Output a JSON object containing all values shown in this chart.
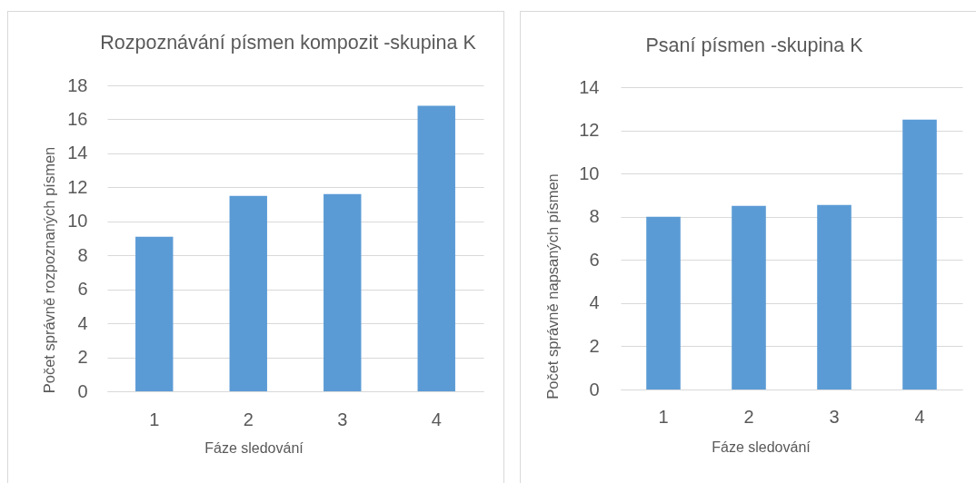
{
  "chart_data": [
    {
      "type": "bar",
      "title": "Rozpoznávání písmen kompozit -skupina K",
      "xlabel": "Fáze sledování",
      "ylabel": "Počet správně rozpoznaných písmen",
      "categories": [
        "1",
        "2",
        "3",
        "4"
      ],
      "values": [
        9.1,
        11.5,
        11.6,
        16.8
      ],
      "color": "#5b9bd5",
      "ylim": [
        0,
        18
      ],
      "yticks": [
        0,
        2,
        4,
        6,
        8,
        10,
        12,
        14,
        16,
        18
      ],
      "grid": "y"
    },
    {
      "type": "bar",
      "title": "Psaní písmen -skupina K",
      "xlabel": "Fáze sledování",
      "ylabel": "Počet správně napsaných písmen",
      "categories": [
        "1",
        "2",
        "3",
        "4"
      ],
      "values": [
        8.0,
        8.5,
        8.55,
        12.5
      ],
      "color": "#5b9bd5",
      "ylim": [
        0,
        14
      ],
      "yticks": [
        0,
        2,
        4,
        6,
        8,
        10,
        12,
        14
      ],
      "grid": "y"
    }
  ]
}
